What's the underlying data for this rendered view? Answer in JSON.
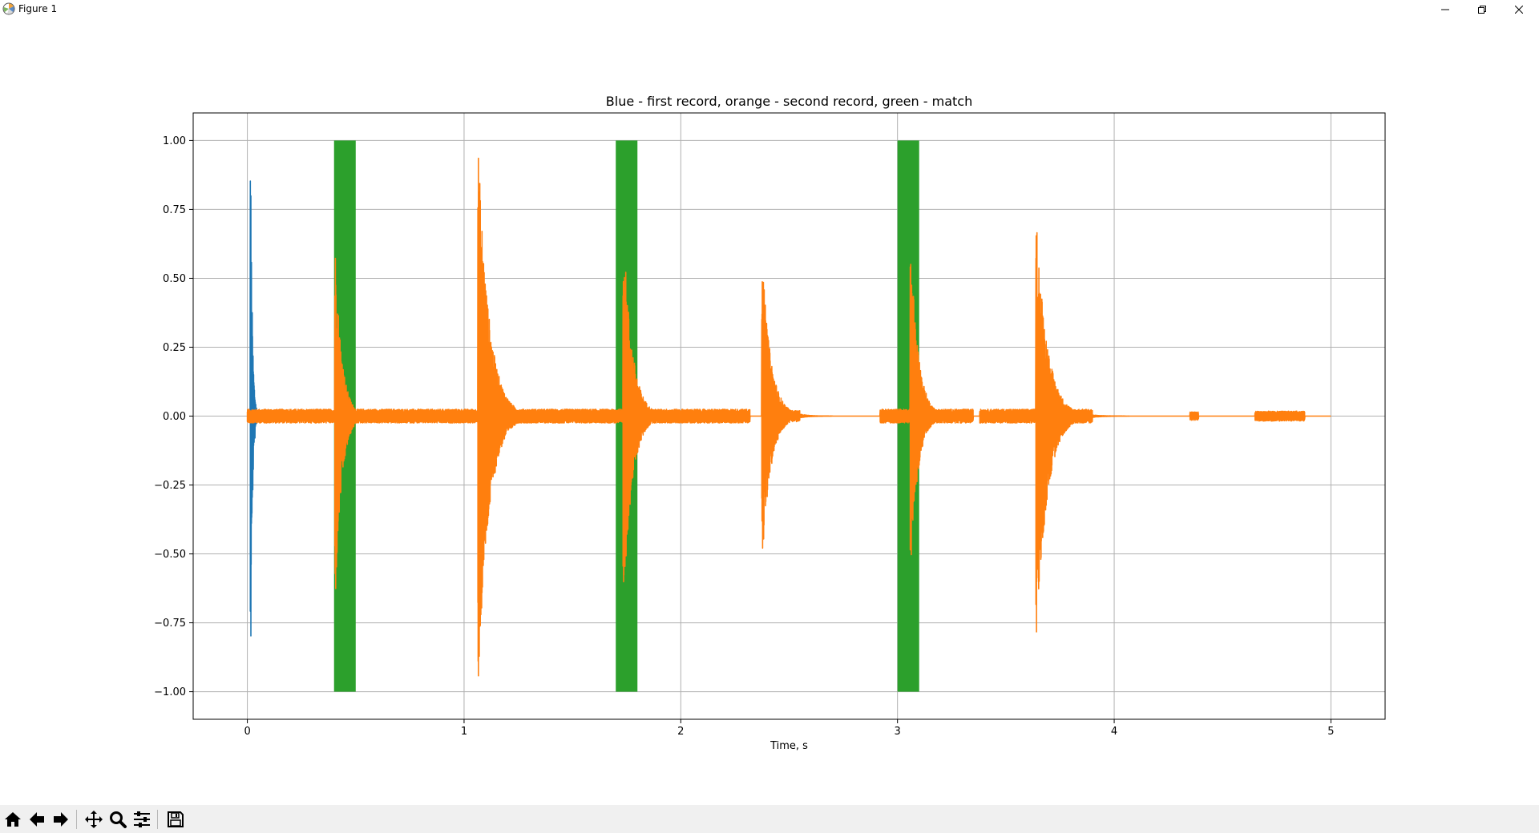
{
  "window": {
    "title": "Figure 1",
    "controls": [
      "minimize-icon",
      "restore-icon",
      "close-icon"
    ]
  },
  "toolbar": {
    "tools": [
      "home-icon",
      "back-arrow-icon",
      "forward-arrow-icon",
      "pan-icon",
      "zoom-icon",
      "configure-subplots-icon",
      "save-icon"
    ]
  },
  "chart_data": {
    "type": "line",
    "title": "Blue - first record, orange - second record, green - match",
    "xlabel": "Time, s",
    "ylabel": "",
    "xlim": [
      -0.25,
      5.25
    ],
    "ylim": [
      -1.1,
      1.1
    ],
    "xticks": [
      0,
      1,
      2,
      3,
      4,
      5
    ],
    "xtick_labels": [
      "0",
      "1",
      "2",
      "3",
      "4",
      "5"
    ],
    "yticks": [
      1.0,
      0.75,
      0.5,
      0.25,
      0.0,
      -0.25,
      -0.5,
      -0.75,
      -1.0
    ],
    "ytick_labels": [
      "1.00",
      "0.75",
      "0.50",
      "0.25",
      "0.00",
      "−0.25",
      "−0.50",
      "−0.75",
      "−1.00"
    ],
    "grid": true,
    "colors": {
      "first": "#1f77b4",
      "second": "#ff7f0e",
      "match": "#2ca02c"
    },
    "match_regions": [
      {
        "x0": 0.4,
        "x1": 0.5,
        "y0": -1.0,
        "y1": 1.0
      },
      {
        "x0": 1.7,
        "x1": 1.8,
        "y0": -1.0,
        "y1": 1.0
      },
      {
        "x0": 3.0,
        "x1": 3.1,
        "y0": -1.0,
        "y1": 1.0
      }
    ],
    "series": [
      {
        "color": "#1f77b4",
        "x_range": [
          0.0,
          0.05
        ],
        "onsets": [
          {
            "t": 0.015,
            "peak": 0.97,
            "trough": -0.99,
            "decay": 0.008
          }
        ]
      },
      {
        "color": "#ff7f0e",
        "x_range": [
          0.0,
          5.0
        ],
        "onsets": [
          {
            "t": 0.405,
            "peak": 0.63,
            "trough": -0.7,
            "decay": 0.03
          },
          {
            "t": 1.065,
            "peak": 0.99,
            "trough": -0.99,
            "decay": 0.05
          },
          {
            "t": 1.735,
            "peak": 0.7,
            "trough": -0.7,
            "decay": 0.04
          },
          {
            "t": 2.375,
            "peak": 0.59,
            "trough": -0.54,
            "decay": 0.04
          },
          {
            "t": 3.06,
            "peak": 0.66,
            "trough": -0.56,
            "decay": 0.035
          },
          {
            "t": 3.64,
            "peak": 0.74,
            "trough": -0.84,
            "decay": 0.05
          }
        ],
        "noise_segments": [
          {
            "x0": 0.0,
            "x1": 2.32,
            "amp": 0.025
          },
          {
            "x0": 2.4,
            "x1": 2.55,
            "amp": 0.02
          },
          {
            "x0": 2.92,
            "x1": 3.35,
            "amp": 0.025
          },
          {
            "x0": 3.38,
            "x1": 3.9,
            "amp": 0.025
          },
          {
            "x0": 4.35,
            "x1": 4.39,
            "amp": 0.015
          },
          {
            "x0": 4.65,
            "x1": 4.88,
            "amp": 0.018
          }
        ]
      }
    ]
  }
}
